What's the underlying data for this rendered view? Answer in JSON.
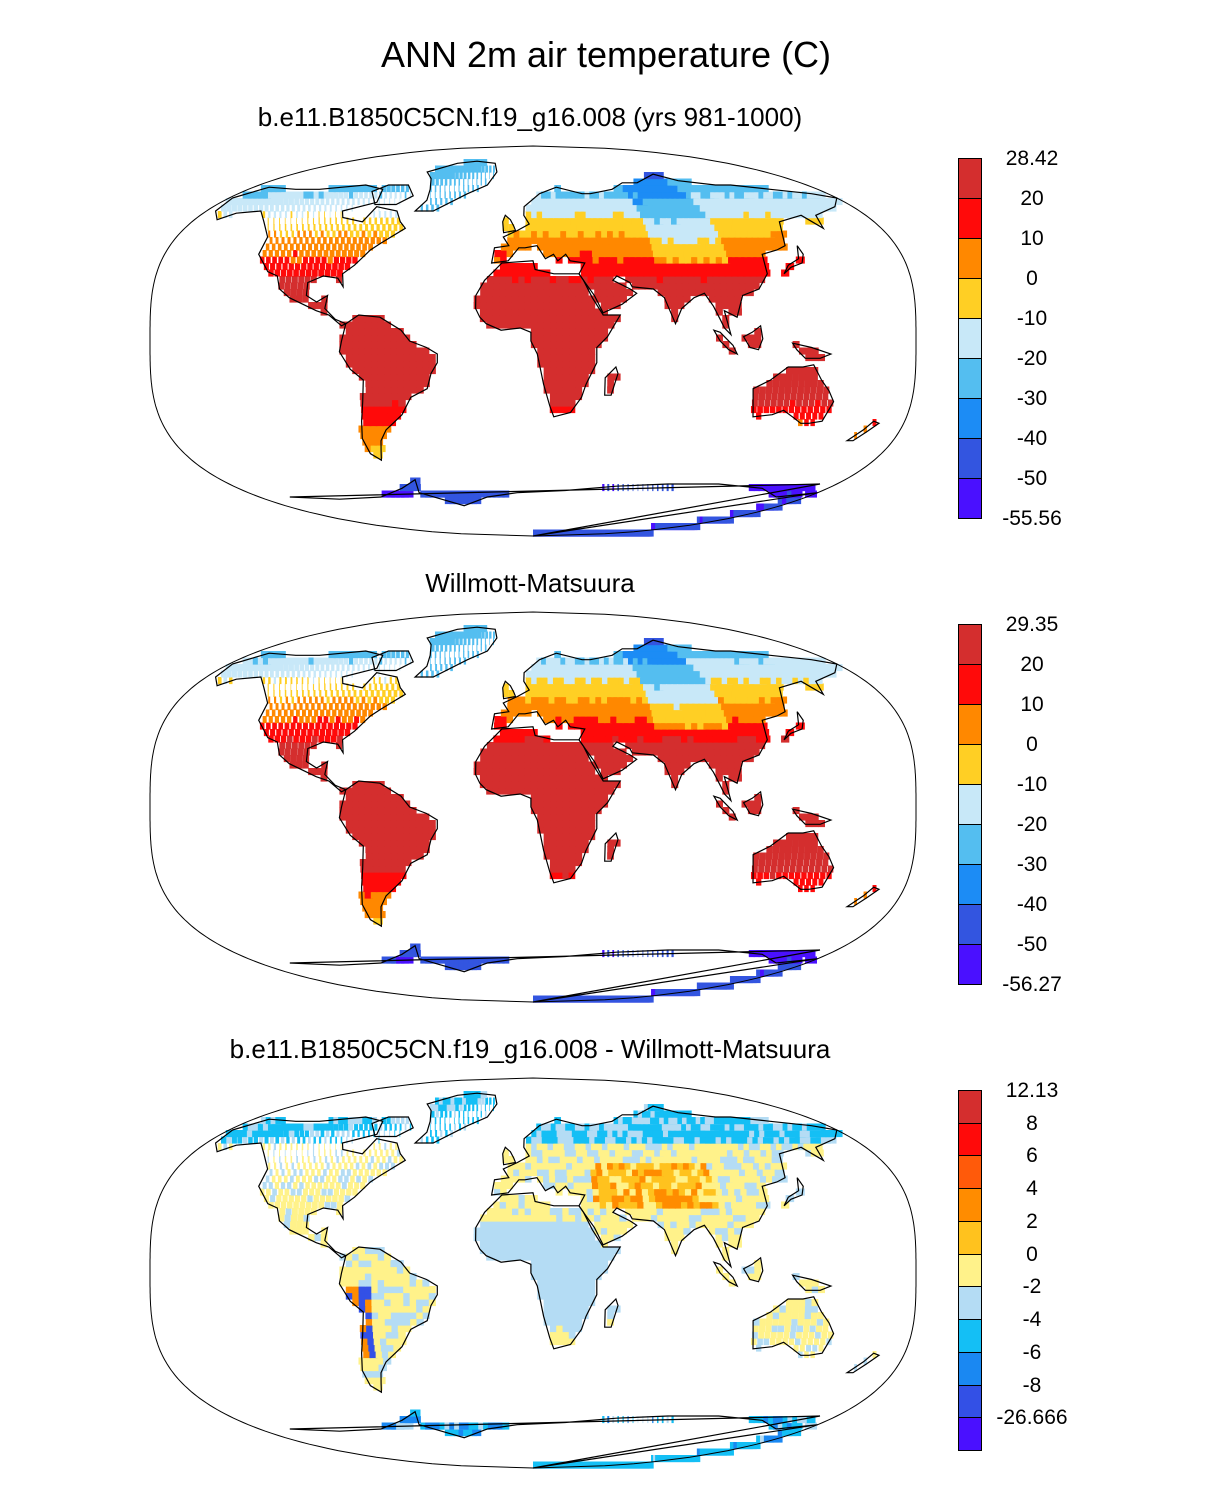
{
  "figure": {
    "title": "ANN 2m air temperature (C)"
  },
  "panels": [
    {
      "id": "model",
      "title": "b.e11.B1850C5CN.f19_g16.008 (yrs 981-1000)",
      "colorbar": {
        "labels": [
          "28.42",
          "20",
          "10",
          "0",
          "-10",
          "-20",
          "-30",
          "-40",
          "-50",
          "-55.56"
        ],
        "colors": [
          "#d42e2e",
          "#ff0a0a",
          "#ff8800",
          "#ffcf24",
          "#c8e8f8",
          "#54bef0",
          "#1c8cf5",
          "#3355e0",
          "#4a10ff"
        ]
      }
    },
    {
      "id": "obs",
      "title": "Willmott-Matsuura",
      "colorbar": {
        "labels": [
          "29.35",
          "20",
          "10",
          "0",
          "-10",
          "-20",
          "-30",
          "-40",
          "-50",
          "-56.27"
        ],
        "colors": [
          "#d42e2e",
          "#ff0a0a",
          "#ff8800",
          "#ffcf24",
          "#c8e8f8",
          "#54bef0",
          "#1c8cf5",
          "#3355e0",
          "#4a10ff"
        ]
      }
    },
    {
      "id": "diff",
      "title": "b.e11.B1850C5CN.f19_g16.008 - Willmott-Matsuura",
      "colorbar": {
        "labels": [
          "12.13",
          "8",
          "6",
          "4",
          "2",
          "0",
          "-2",
          "-4",
          "-6",
          "-8",
          "-26.666"
        ],
        "colors": [
          "#d42e2e",
          "#ff0a0a",
          "#ff5a0a",
          "#ff8c00",
          "#ffc21e",
          "#fff28a",
          "#b4dcf4",
          "#14bff5",
          "#1a88f2",
          "#3350e6",
          "#4a10ff"
        ]
      }
    }
  ]
}
